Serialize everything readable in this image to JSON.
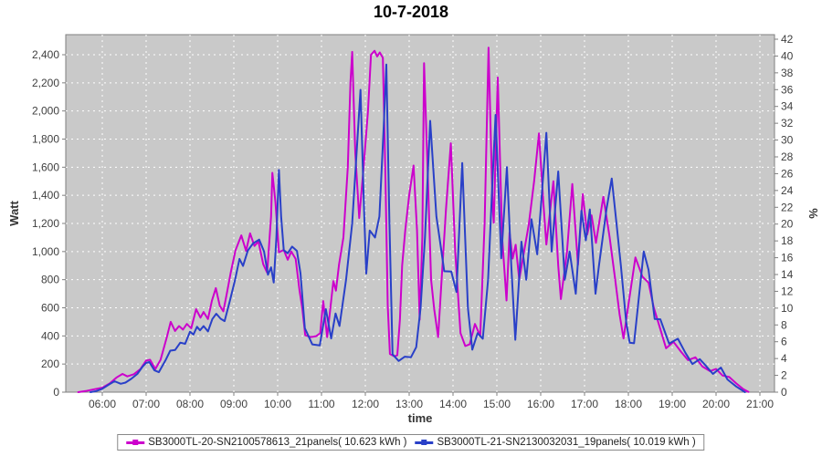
{
  "chart_data": {
    "type": "line",
    "title": "10-7-2018",
    "xlabel": "time",
    "ylabel_left": "Watt",
    "ylabel_right": "%",
    "grid": true,
    "legend_position": "bottom",
    "x_tick_labels": [
      "06:00",
      "07:00",
      "08:00",
      "09:00",
      "10:00",
      "11:00",
      "12:00",
      "13:00",
      "14:00",
      "15:00",
      "16:00",
      "17:00",
      "18:00",
      "19:00",
      "20:00",
      "21:00"
    ],
    "x_tick_hours": [
      6,
      7,
      8,
      9,
      10,
      11,
      12,
      13,
      14,
      15,
      16,
      17,
      18,
      19,
      20,
      21
    ],
    "left_tick_labels": [
      "0",
      "200",
      "400",
      "600",
      "800",
      "1,000",
      "1,200",
      "1,400",
      "1,600",
      "1,800",
      "2,000",
      "2,200",
      "2,400"
    ],
    "left_tick_values": [
      0,
      200,
      400,
      600,
      800,
      1000,
      1200,
      1400,
      1600,
      1800,
      2000,
      2200,
      2400
    ],
    "right_tick_labels": [
      "0",
      "2",
      "4",
      "6",
      "8",
      "10",
      "12",
      "14",
      "16",
      "18",
      "20",
      "22",
      "24",
      "26",
      "28",
      "30",
      "32",
      "34",
      "36",
      "38",
      "40",
      "42"
    ],
    "right_tick_values": [
      0,
      2,
      4,
      6,
      8,
      10,
      12,
      14,
      16,
      18,
      20,
      22,
      24,
      26,
      28,
      30,
      32,
      34,
      36,
      38,
      40,
      42
    ],
    "ylim_left": [
      0,
      2400
    ],
    "ylim_right": [
      0,
      42
    ],
    "colors": {
      "plot_bg": "#c9c9c9",
      "plot_border": "#7f7f7f",
      "grid": "#ffffff",
      "tick_text": "#3f3f3f",
      "axis_label_text": "#333333"
    },
    "series": [
      {
        "name": "SB3000TL-20-SN2100578613_21panels( 10.623 kWh )",
        "color": "#cc00cc",
        "points": [
          [
            5.45,
            0
          ],
          [
            5.62,
            8
          ],
          [
            5.78,
            18
          ],
          [
            6,
            32
          ],
          [
            6.17,
            62
          ],
          [
            6.33,
            105
          ],
          [
            6.46,
            130
          ],
          [
            6.57,
            112
          ],
          [
            6.72,
            128
          ],
          [
            6.87,
            165
          ],
          [
            7,
            225
          ],
          [
            7.09,
            230
          ],
          [
            7.21,
            165
          ],
          [
            7.33,
            230
          ],
          [
            7.47,
            390
          ],
          [
            7.56,
            500
          ],
          [
            7.66,
            435
          ],
          [
            7.75,
            470
          ],
          [
            7.84,
            445
          ],
          [
            7.93,
            485
          ],
          [
            8.03,
            455
          ],
          [
            8.14,
            590
          ],
          [
            8.24,
            530
          ],
          [
            8.31,
            570
          ],
          [
            8.41,
            520
          ],
          [
            8.5,
            650
          ],
          [
            8.59,
            740
          ],
          [
            8.68,
            615
          ],
          [
            8.76,
            575
          ],
          [
            8.84,
            700
          ],
          [
            8.93,
            850
          ],
          [
            9.04,
            1010
          ],
          [
            9.17,
            1115
          ],
          [
            9.28,
            1005
          ],
          [
            9.37,
            1130
          ],
          [
            9.47,
            1040
          ],
          [
            9.56,
            1072
          ],
          [
            9.67,
            910
          ],
          [
            9.76,
            850
          ],
          [
            9.85,
            1250
          ],
          [
            9.88,
            1560
          ],
          [
            9.95,
            1350
          ],
          [
            10.03,
            995
          ],
          [
            10.14,
            1012
          ],
          [
            10.23,
            942
          ],
          [
            10.31,
            1000
          ],
          [
            10.41,
            948
          ],
          [
            10.5,
            720
          ],
          [
            10.56,
            600
          ],
          [
            10.63,
            405
          ],
          [
            10.75,
            392
          ],
          [
            10.88,
            398
          ],
          [
            10.97,
            420
          ],
          [
            11.04,
            648
          ],
          [
            11.13,
            392
          ],
          [
            11.27,
            790
          ],
          [
            11.33,
            722
          ],
          [
            11.4,
            908
          ],
          [
            11.5,
            1100
          ],
          [
            11.6,
            1600
          ],
          [
            11.66,
            2200
          ],
          [
            11.7,
            2420
          ],
          [
            11.77,
            1700
          ],
          [
            11.86,
            1238
          ],
          [
            11.96,
            1600
          ],
          [
            12.06,
            2000
          ],
          [
            12.13,
            2400
          ],
          [
            12.21,
            2428
          ],
          [
            12.27,
            2388
          ],
          [
            12.33,
            2416
          ],
          [
            12.4,
            2378
          ],
          [
            12.46,
            1500
          ],
          [
            12.51,
            620
          ],
          [
            12.56,
            272
          ],
          [
            12.66,
            255
          ],
          [
            12.73,
            262
          ],
          [
            12.79,
            520
          ],
          [
            12.84,
            900
          ],
          [
            12.91,
            1150
          ],
          [
            13,
            1400
          ],
          [
            13.1,
            1612
          ],
          [
            13.18,
            1150
          ],
          [
            13.24,
            515
          ],
          [
            13.3,
            1100
          ],
          [
            13.34,
            2340
          ],
          [
            13.43,
            1500
          ],
          [
            13.5,
            800
          ],
          [
            13.57,
            590
          ],
          [
            13.66,
            392
          ],
          [
            13.74,
            800
          ],
          [
            13.84,
            1300
          ],
          [
            13.95,
            1770
          ],
          [
            14.05,
            1000
          ],
          [
            14.17,
            420
          ],
          [
            14.28,
            328
          ],
          [
            14.38,
            340
          ],
          [
            14.5,
            485
          ],
          [
            14.62,
            400
          ],
          [
            14.72,
            1200
          ],
          [
            14.81,
            2450
          ],
          [
            14.9,
            1350
          ],
          [
            14.93,
            1205
          ],
          [
            15.02,
            2238
          ],
          [
            15.12,
            1100
          ],
          [
            15.22,
            652
          ],
          [
            15.29,
            1135
          ],
          [
            15.36,
            950
          ],
          [
            15.43,
            1048
          ],
          [
            15.51,
            800
          ],
          [
            15.62,
            1000
          ],
          [
            15.73,
            1195
          ],
          [
            15.85,
            1500
          ],
          [
            15.96,
            1840
          ],
          [
            16.06,
            1350
          ],
          [
            16.13,
            1050
          ],
          [
            16.29,
            1500
          ],
          [
            16.4,
            900
          ],
          [
            16.46,
            662
          ],
          [
            16.6,
            1000
          ],
          [
            16.72,
            1480
          ],
          [
            16.85,
            905
          ],
          [
            16.96,
            1408
          ],
          [
            17.06,
            1120
          ],
          [
            17.16,
            1258
          ],
          [
            17.26,
            1062
          ],
          [
            17.43,
            1390
          ],
          [
            17.57,
            1105
          ],
          [
            17.7,
            800
          ],
          [
            17.8,
            552
          ],
          [
            17.89,
            382
          ],
          [
            18,
            620
          ],
          [
            18.16,
            958
          ],
          [
            18.32,
            822
          ],
          [
            18.46,
            778
          ],
          [
            18.58,
            602
          ],
          [
            18.7,
            478
          ],
          [
            18.86,
            312
          ],
          [
            19.03,
            358
          ],
          [
            19.2,
            288
          ],
          [
            19.36,
            228
          ],
          [
            19.53,
            248
          ],
          [
            19.69,
            182
          ],
          [
            19.86,
            150
          ],
          [
            20,
            165
          ],
          [
            20.15,
            118
          ],
          [
            20.3,
            108
          ],
          [
            20.46,
            62
          ],
          [
            20.62,
            22
          ],
          [
            20.74,
            2
          ]
        ]
      },
      {
        "name": "SB3000TL-21-SN2130032031_19panels( 10.019 kWh )",
        "color": "#2940c8",
        "points": [
          [
            5.73,
            0
          ],
          [
            5.86,
            8
          ],
          [
            6,
            24
          ],
          [
            6.16,
            56
          ],
          [
            6.28,
            78
          ],
          [
            6.42,
            60
          ],
          [
            6.53,
            68
          ],
          [
            6.66,
            95
          ],
          [
            6.8,
            130
          ],
          [
            6.92,
            182
          ],
          [
            7,
            208
          ],
          [
            7.07,
            215
          ],
          [
            7.19,
            155
          ],
          [
            7.29,
            142
          ],
          [
            7.44,
            225
          ],
          [
            7.55,
            295
          ],
          [
            7.66,
            300
          ],
          [
            7.78,
            352
          ],
          [
            7.89,
            344
          ],
          [
            8,
            430
          ],
          [
            8.08,
            410
          ],
          [
            8.16,
            465
          ],
          [
            8.23,
            440
          ],
          [
            8.31,
            470
          ],
          [
            8.41,
            432
          ],
          [
            8.51,
            520
          ],
          [
            8.6,
            558
          ],
          [
            8.7,
            522
          ],
          [
            8.79,
            505
          ],
          [
            8.91,
            650
          ],
          [
            9.03,
            800
          ],
          [
            9.13,
            948
          ],
          [
            9.21,
            898
          ],
          [
            9.32,
            1008
          ],
          [
            9.44,
            1058
          ],
          [
            9.58,
            1085
          ],
          [
            9.69,
            1000
          ],
          [
            9.78,
            835
          ],
          [
            9.85,
            888
          ],
          [
            9.91,
            780
          ],
          [
            9.97,
            1100
          ],
          [
            10.03,
            1580
          ],
          [
            10.08,
            1250
          ],
          [
            10.14,
            1010
          ],
          [
            10.23,
            988
          ],
          [
            10.33,
            1035
          ],
          [
            10.44,
            1005
          ],
          [
            10.52,
            845
          ],
          [
            10.62,
            455
          ],
          [
            10.79,
            340
          ],
          [
            10.96,
            332
          ],
          [
            11.1,
            590
          ],
          [
            11.22,
            382
          ],
          [
            11.32,
            560
          ],
          [
            11.41,
            470
          ],
          [
            11.56,
            800
          ],
          [
            11.7,
            1200
          ],
          [
            11.8,
            1700
          ],
          [
            11.89,
            2150
          ],
          [
            11.97,
            1300
          ],
          [
            12.02,
            843
          ],
          [
            12.1,
            1150
          ],
          [
            12.22,
            1100
          ],
          [
            12.32,
            1250
          ],
          [
            12.42,
            1900
          ],
          [
            12.48,
            2330
          ],
          [
            12.55,
            1200
          ],
          [
            12.62,
            270
          ],
          [
            12.76,
            222
          ],
          [
            12.9,
            252
          ],
          [
            13.04,
            248
          ],
          [
            13.16,
            320
          ],
          [
            13.26,
            600
          ],
          [
            13.36,
            1100
          ],
          [
            13.48,
            1930
          ],
          [
            13.62,
            1250
          ],
          [
            13.7,
            1080
          ],
          [
            13.8,
            860
          ],
          [
            13.96,
            858
          ],
          [
            14.08,
            713
          ],
          [
            14.21,
            1630
          ],
          [
            14.34,
            600
          ],
          [
            14.44,
            302
          ],
          [
            14.56,
            420
          ],
          [
            14.68,
            380
          ],
          [
            14.8,
            800
          ],
          [
            14.9,
            1500
          ],
          [
            14.97,
            1972
          ],
          [
            15.1,
            952
          ],
          [
            15.23,
            1600
          ],
          [
            15.33,
            900
          ],
          [
            15.42,
            372
          ],
          [
            15.56,
            1070
          ],
          [
            15.67,
            800
          ],
          [
            15.79,
            1230
          ],
          [
            15.92,
            980
          ],
          [
            16,
            1300
          ],
          [
            16.13,
            1845
          ],
          [
            16.25,
            1000
          ],
          [
            16.4,
            1570
          ],
          [
            16.55,
            800
          ],
          [
            16.66,
            1000
          ],
          [
            16.8,
            700
          ],
          [
            16.93,
            1290
          ],
          [
            17.03,
            1080
          ],
          [
            17.12,
            1300
          ],
          [
            17.25,
            700
          ],
          [
            17.33,
            900
          ],
          [
            17.5,
            1300
          ],
          [
            17.62,
            1520
          ],
          [
            17.73,
            1200
          ],
          [
            17.83,
            900
          ],
          [
            17.95,
            500
          ],
          [
            18.03,
            352
          ],
          [
            18.13,
            348
          ],
          [
            18.35,
            1000
          ],
          [
            18.46,
            870
          ],
          [
            18.6,
            520
          ],
          [
            18.73,
            518
          ],
          [
            18.93,
            345
          ],
          [
            19.13,
            380
          ],
          [
            19.3,
            280
          ],
          [
            19.46,
            200
          ],
          [
            19.63,
            235
          ],
          [
            19.76,
            190
          ],
          [
            19.93,
            130
          ],
          [
            20.11,
            175
          ],
          [
            20.26,
            90
          ],
          [
            20.46,
            40
          ],
          [
            20.66,
            0
          ]
        ]
      }
    ]
  }
}
